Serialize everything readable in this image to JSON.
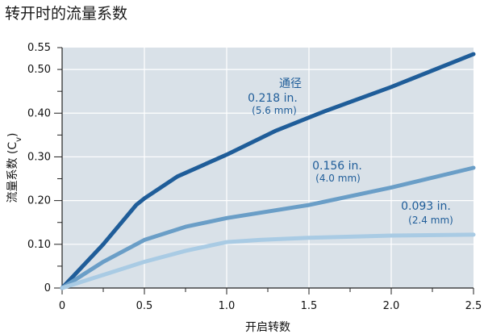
{
  "chart_data": {
    "type": "line",
    "title": "转开时的流量系数",
    "xlabel": "开启转数",
    "ylabel_main": "流量系数 (C",
    "ylabel_sub": "v",
    "ylabel_end": ")",
    "xlim": [
      0,
      2.5
    ],
    "ylim": [
      0,
      0.55
    ],
    "x_ticks": [
      "0",
      "0.5",
      "1.0",
      "1.5",
      "2.0",
      "2.5"
    ],
    "y_ticks": [
      "0",
      "0.10",
      "0.20",
      "0.30",
      "0.40",
      "0.50",
      "0.55"
    ],
    "grid": true,
    "series": [
      {
        "color": "#1f5d99",
        "x": [
          0,
          0.25,
          0.45,
          0.5,
          0.7,
          1.0,
          1.3,
          1.6,
          2.0,
          2.5
        ],
        "y": [
          0,
          0.1,
          0.19,
          0.205,
          0.255,
          0.305,
          0.36,
          0.405,
          0.46,
          0.535
        ]
      },
      {
        "color": "#6a9ec7",
        "x": [
          0,
          0.25,
          0.5,
          0.75,
          1.0,
          1.5,
          2.0,
          2.5
        ],
        "y": [
          0,
          0.06,
          0.11,
          0.14,
          0.16,
          0.19,
          0.23,
          0.275
        ]
      },
      {
        "color": "#a9cbe4",
        "x": [
          0,
          0.5,
          0.75,
          1.0,
          1.2,
          1.5,
          2.0,
          2.5
        ],
        "y": [
          0,
          0.06,
          0.085,
          0.105,
          0.11,
          0.115,
          0.12,
          0.122
        ]
      }
    ],
    "annotations": [
      {
        "lines": [
          "通径",
          "0.218 in."
        ],
        "small": "(5.6 mm)"
      },
      {
        "lines": [
          "0.156 in."
        ],
        "small": "(4.0 mm)"
      },
      {
        "lines": [
          "0.093 in."
        ],
        "small": "(2.4 mm)"
      }
    ]
  }
}
